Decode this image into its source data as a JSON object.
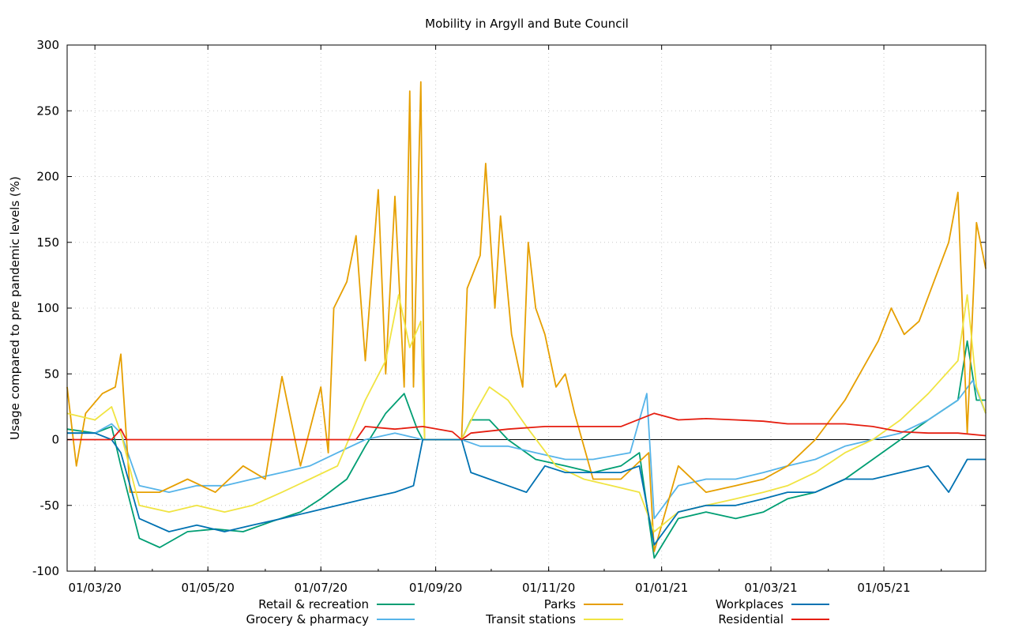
{
  "chart_data": {
    "type": "line",
    "title": "Mobility in Argyll and Bute Council",
    "ylabel": "Usage compared to pre pandemic levels (%)",
    "xlabel": "",
    "ylim": [
      -100,
      300
    ],
    "yticks": [
      -100,
      -50,
      0,
      50,
      100,
      150,
      200,
      250,
      300
    ],
    "x_tick_labels": [
      "01/03/20",
      "01/05/20",
      "01/07/20",
      "01/09/20",
      "01/11/20",
      "01/01/21",
      "01/03/21",
      "01/05/21"
    ],
    "x_start": "2020-02-15",
    "x_end": "2021-06-25",
    "grid": true,
    "legend_position": "bottom",
    "series": [
      {
        "name": "Retail & recreation",
        "color": "#009e73",
        "points": [
          [
            "2020-02-15",
            8
          ],
          [
            "2020-03-01",
            5
          ],
          [
            "2020-03-10",
            10
          ],
          [
            "2020-03-15",
            -20
          ],
          [
            "2020-03-25",
            -75
          ],
          [
            "2020-04-05",
            -82
          ],
          [
            "2020-04-20",
            -70
          ],
          [
            "2020-05-05",
            -68
          ],
          [
            "2020-05-20",
            -70
          ],
          [
            "2020-06-05",
            -62
          ],
          [
            "2020-06-20",
            -55
          ],
          [
            "2020-07-01",
            -45
          ],
          [
            "2020-07-15",
            -30
          ],
          [
            "2020-07-25",
            -5
          ],
          [
            "2020-08-05",
            20
          ],
          [
            "2020-08-15",
            35
          ],
          [
            "2020-08-22",
            8
          ],
          [
            "2020-08-25",
            0
          ],
          [
            "2020-09-15",
            0
          ],
          [
            "2020-09-20",
            15
          ],
          [
            "2020-09-30",
            15
          ],
          [
            "2020-10-10",
            0
          ],
          [
            "2020-10-25",
            -15
          ],
          [
            "2020-11-10",
            -20
          ],
          [
            "2020-11-25",
            -25
          ],
          [
            "2020-12-10",
            -20
          ],
          [
            "2020-12-20",
            -10
          ],
          [
            "2020-12-28",
            -90
          ],
          [
            "2021-01-10",
            -60
          ],
          [
            "2021-01-25",
            -55
          ],
          [
            "2021-02-10",
            -60
          ],
          [
            "2021-02-25",
            -55
          ],
          [
            "2021-03-10",
            -45
          ],
          [
            "2021-03-25",
            -40
          ],
          [
            "2021-04-10",
            -30
          ],
          [
            "2021-04-25",
            -15
          ],
          [
            "2021-05-10",
            0
          ],
          [
            "2021-05-25",
            15
          ],
          [
            "2021-06-10",
            30
          ],
          [
            "2021-06-15",
            75
          ],
          [
            "2021-06-20",
            30
          ],
          [
            "2021-06-25",
            30
          ]
        ]
      },
      {
        "name": "Grocery & pharmacy",
        "color": "#56b4e9",
        "points": [
          [
            "2020-02-15",
            5
          ],
          [
            "2020-03-01",
            5
          ],
          [
            "2020-03-10",
            12
          ],
          [
            "2020-03-15",
            5
          ],
          [
            "2020-03-25",
            -35
          ],
          [
            "2020-04-10",
            -40
          ],
          [
            "2020-04-25",
            -35
          ],
          [
            "2020-05-10",
            -35
          ],
          [
            "2020-05-25",
            -30
          ],
          [
            "2020-06-10",
            -25
          ],
          [
            "2020-06-25",
            -20
          ],
          [
            "2020-07-10",
            -10
          ],
          [
            "2020-07-25",
            0
          ],
          [
            "2020-08-10",
            5
          ],
          [
            "2020-08-25",
            0
          ],
          [
            "2020-09-15",
            0
          ],
          [
            "2020-09-25",
            -5
          ],
          [
            "2020-10-10",
            -5
          ],
          [
            "2020-10-25",
            -10
          ],
          [
            "2020-11-10",
            -15
          ],
          [
            "2020-11-25",
            -15
          ],
          [
            "2020-12-15",
            -10
          ],
          [
            "2020-12-24",
            35
          ],
          [
            "2020-12-28",
            -60
          ],
          [
            "2021-01-10",
            -35
          ],
          [
            "2021-01-25",
            -30
          ],
          [
            "2021-02-10",
            -30
          ],
          [
            "2021-02-25",
            -25
          ],
          [
            "2021-03-10",
            -20
          ],
          [
            "2021-03-25",
            -15
          ],
          [
            "2021-04-10",
            -5
          ],
          [
            "2021-04-25",
            0
          ],
          [
            "2021-05-10",
            5
          ],
          [
            "2021-05-25",
            15
          ],
          [
            "2021-06-10",
            30
          ],
          [
            "2021-06-18",
            45
          ],
          [
            "2021-06-25",
            20
          ]
        ]
      },
      {
        "name": "Parks",
        "color": "#e69f00",
        "points": [
          [
            "2020-02-15",
            40
          ],
          [
            "2020-02-20",
            -20
          ],
          [
            "2020-02-25",
            20
          ],
          [
            "2020-03-05",
            35
          ],
          [
            "2020-03-12",
            40
          ],
          [
            "2020-03-15",
            65
          ],
          [
            "2020-03-20",
            -40
          ],
          [
            "2020-04-05",
            -40
          ],
          [
            "2020-04-20",
            -30
          ],
          [
            "2020-05-05",
            -40
          ],
          [
            "2020-05-20",
            -20
          ],
          [
            "2020-06-01",
            -30
          ],
          [
            "2020-06-10",
            48
          ],
          [
            "2020-06-20",
            -20
          ],
          [
            "2020-07-01",
            40
          ],
          [
            "2020-07-05",
            -10
          ],
          [
            "2020-07-08",
            100
          ],
          [
            "2020-07-15",
            120
          ],
          [
            "2020-07-20",
            155
          ],
          [
            "2020-07-25",
            60
          ],
          [
            "2020-08-01",
            190
          ],
          [
            "2020-08-05",
            50
          ],
          [
            "2020-08-10",
            185
          ],
          [
            "2020-08-15",
            40
          ],
          [
            "2020-08-18",
            265
          ],
          [
            "2020-08-20",
            40
          ],
          [
            "2020-08-24",
            272
          ],
          [
            "2020-08-26",
            0
          ],
          [
            "2020-09-15",
            0
          ],
          [
            "2020-09-18",
            115
          ],
          [
            "2020-09-25",
            140
          ],
          [
            "2020-09-28",
            210
          ],
          [
            "2020-10-03",
            100
          ],
          [
            "2020-10-06",
            170
          ],
          [
            "2020-10-12",
            80
          ],
          [
            "2020-10-18",
            40
          ],
          [
            "2020-10-21",
            150
          ],
          [
            "2020-10-25",
            100
          ],
          [
            "2020-10-30",
            80
          ],
          [
            "2020-11-05",
            40
          ],
          [
            "2020-11-10",
            50
          ],
          [
            "2020-11-15",
            20
          ],
          [
            "2020-11-25",
            -30
          ],
          [
            "2020-12-10",
            -30
          ],
          [
            "2020-12-25",
            -10
          ],
          [
            "2020-12-28",
            -85
          ],
          [
            "2021-01-10",
            -20
          ],
          [
            "2021-01-25",
            -40
          ],
          [
            "2021-02-10",
            -35
          ],
          [
            "2021-02-25",
            -30
          ],
          [
            "2021-03-10",
            -20
          ],
          [
            "2021-03-25",
            0
          ],
          [
            "2021-04-10",
            30
          ],
          [
            "2021-04-20",
            55
          ],
          [
            "2021-04-28",
            75
          ],
          [
            "2021-05-05",
            100
          ],
          [
            "2021-05-12",
            80
          ],
          [
            "2021-05-20",
            90
          ],
          [
            "2021-05-28",
            120
          ],
          [
            "2021-06-05",
            150
          ],
          [
            "2021-06-10",
            188
          ],
          [
            "2021-06-15",
            5
          ],
          [
            "2021-06-20",
            165
          ],
          [
            "2021-06-25",
            130
          ]
        ]
      },
      {
        "name": "Transit stations",
        "color": "#f0e442",
        "points": [
          [
            "2020-02-15",
            20
          ],
          [
            "2020-03-01",
            15
          ],
          [
            "2020-03-10",
            25
          ],
          [
            "2020-03-15",
            5
          ],
          [
            "2020-03-25",
            -50
          ],
          [
            "2020-04-10",
            -55
          ],
          [
            "2020-04-25",
            -50
          ],
          [
            "2020-05-10",
            -55
          ],
          [
            "2020-05-25",
            -50
          ],
          [
            "2020-06-10",
            -40
          ],
          [
            "2020-06-25",
            -30
          ],
          [
            "2020-07-10",
            -20
          ],
          [
            "2020-07-25",
            30
          ],
          [
            "2020-08-05",
            60
          ],
          [
            "2020-08-12",
            110
          ],
          [
            "2020-08-18",
            70
          ],
          [
            "2020-08-24",
            90
          ],
          [
            "2020-08-26",
            0
          ],
          [
            "2020-09-15",
            0
          ],
          [
            "2020-09-22",
            20
          ],
          [
            "2020-09-30",
            40
          ],
          [
            "2020-10-10",
            30
          ],
          [
            "2020-10-20",
            10
          ],
          [
            "2020-11-05",
            -20
          ],
          [
            "2020-11-20",
            -30
          ],
          [
            "2020-12-05",
            -35
          ],
          [
            "2020-12-20",
            -40
          ],
          [
            "2020-12-28",
            -70
          ],
          [
            "2021-01-10",
            -55
          ],
          [
            "2021-01-25",
            -50
          ],
          [
            "2021-02-10",
            -45
          ],
          [
            "2021-02-25",
            -40
          ],
          [
            "2021-03-10",
            -35
          ],
          [
            "2021-03-25",
            -25
          ],
          [
            "2021-04-10",
            -10
          ],
          [
            "2021-04-25",
            0
          ],
          [
            "2021-05-10",
            15
          ],
          [
            "2021-05-25",
            35
          ],
          [
            "2021-06-10",
            60
          ],
          [
            "2021-06-15",
            110
          ],
          [
            "2021-06-20",
            40
          ],
          [
            "2021-06-25",
            20
          ]
        ]
      },
      {
        "name": "Workplaces",
        "color": "#0072b2",
        "points": [
          [
            "2020-02-15",
            5
          ],
          [
            "2020-03-01",
            5
          ],
          [
            "2020-03-10",
            0
          ],
          [
            "2020-03-15",
            -10
          ],
          [
            "2020-03-25",
            -60
          ],
          [
            "2020-04-10",
            -70
          ],
          [
            "2020-04-25",
            -65
          ],
          [
            "2020-05-10",
            -70
          ],
          [
            "2020-05-25",
            -65
          ],
          [
            "2020-06-10",
            -60
          ],
          [
            "2020-06-25",
            -55
          ],
          [
            "2020-07-10",
            -50
          ],
          [
            "2020-07-25",
            -45
          ],
          [
            "2020-08-10",
            -40
          ],
          [
            "2020-08-20",
            -35
          ],
          [
            "2020-08-25",
            0
          ],
          [
            "2020-09-15",
            0
          ],
          [
            "2020-09-20",
            -25
          ],
          [
            "2020-09-30",
            -30
          ],
          [
            "2020-10-10",
            -35
          ],
          [
            "2020-10-20",
            -40
          ],
          [
            "2020-10-30",
            -20
          ],
          [
            "2020-11-10",
            -25
          ],
          [
            "2020-11-25",
            -25
          ],
          [
            "2020-12-10",
            -25
          ],
          [
            "2020-12-20",
            -20
          ],
          [
            "2020-12-28",
            -80
          ],
          [
            "2021-01-10",
            -55
          ],
          [
            "2021-01-25",
            -50
          ],
          [
            "2021-02-10",
            -50
          ],
          [
            "2021-02-25",
            -45
          ],
          [
            "2021-03-10",
            -40
          ],
          [
            "2021-03-25",
            -40
          ],
          [
            "2021-04-10",
            -30
          ],
          [
            "2021-04-25",
            -30
          ],
          [
            "2021-05-10",
            -25
          ],
          [
            "2021-05-25",
            -20
          ],
          [
            "2021-06-05",
            -40
          ],
          [
            "2021-06-15",
            -15
          ],
          [
            "2021-06-25",
            -15
          ]
        ]
      },
      {
        "name": "Residential",
        "color": "#e51e10",
        "points": [
          [
            "2020-02-15",
            0
          ],
          [
            "2020-03-10",
            0
          ],
          [
            "2020-03-15",
            8
          ],
          [
            "2020-03-18",
            0
          ],
          [
            "2020-07-20",
            0
          ],
          [
            "2020-07-25",
            10
          ],
          [
            "2020-08-10",
            8
          ],
          [
            "2020-08-25",
            10
          ],
          [
            "2020-09-10",
            6
          ],
          [
            "2020-09-15",
            0
          ],
          [
            "2020-09-20",
            5
          ],
          [
            "2020-10-10",
            8
          ],
          [
            "2020-10-30",
            10
          ],
          [
            "2020-11-20",
            10
          ],
          [
            "2020-12-10",
            10
          ],
          [
            "2020-12-28",
            20
          ],
          [
            "2021-01-10",
            15
          ],
          [
            "2021-01-25",
            16
          ],
          [
            "2021-02-10",
            15
          ],
          [
            "2021-02-25",
            14
          ],
          [
            "2021-03-10",
            12
          ],
          [
            "2021-03-25",
            12
          ],
          [
            "2021-04-10",
            12
          ],
          [
            "2021-04-25",
            10
          ],
          [
            "2021-05-10",
            6
          ],
          [
            "2021-05-25",
            5
          ],
          [
            "2021-06-10",
            5
          ],
          [
            "2021-06-25",
            3
          ]
        ]
      }
    ]
  }
}
